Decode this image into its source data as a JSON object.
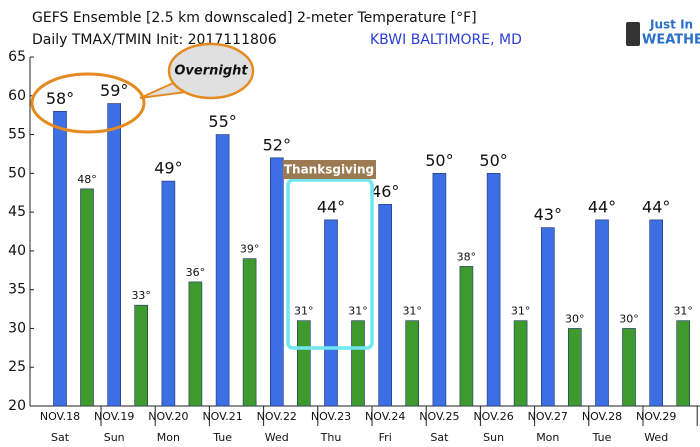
{
  "chart_data": {
    "type": "bar",
    "title": "GEFS Ensemble [2.5 km downscaled] 2-meter Temperature [°F]",
    "subtitle": "Daily TMAX/TMIN Init: 2017111806",
    "location": "KBWI BALTIMORE, MD",
    "logo": [
      "Just In",
      "WEATHER"
    ],
    "categories": [
      "NOV.18",
      "NOV.19",
      "NOV.20",
      "NOV.21",
      "NOV.22",
      "NOV.23",
      "NOV.24",
      "NOV.25",
      "NOV.26",
      "NOV.27",
      "NOV.28",
      "NOV.29"
    ],
    "weekdays": [
      "Sat",
      "Sun",
      "Mon",
      "Tue",
      "Wed",
      "Thu",
      "Fri",
      "Sat",
      "Sun",
      "Mon",
      "Tue",
      "Wed"
    ],
    "series": [
      {
        "name": "TMAX",
        "color": "#3b6fe3",
        "values": [
          58,
          59,
          49,
          55,
          52,
          44,
          46,
          50,
          50,
          43,
          44,
          44
        ],
        "value_labels": [
          "58°",
          "59°",
          "49°",
          "55°",
          "52°",
          "44°",
          "46°",
          "50°",
          "50°",
          "43°",
          "44°",
          "44°"
        ]
      },
      {
        "name": "TMIN",
        "color": "#3e9a2d",
        "values": [
          48,
          33,
          36,
          39,
          31,
          31,
          31,
          38,
          31,
          30,
          30,
          31
        ],
        "value_labels": [
          "48°",
          "33°",
          "36°",
          "39°",
          "31°",
          "31°",
          "31°",
          "38°",
          "31°",
          "30°",
          "30°",
          "31°"
        ]
      }
    ],
    "annotations": [
      "Overnight",
      "Thanksgiving"
    ],
    "ylim": [
      20,
      65
    ],
    "yticks": [
      20,
      25,
      30,
      35,
      40,
      45,
      50,
      55,
      60,
      65
    ],
    "grid": false
  }
}
